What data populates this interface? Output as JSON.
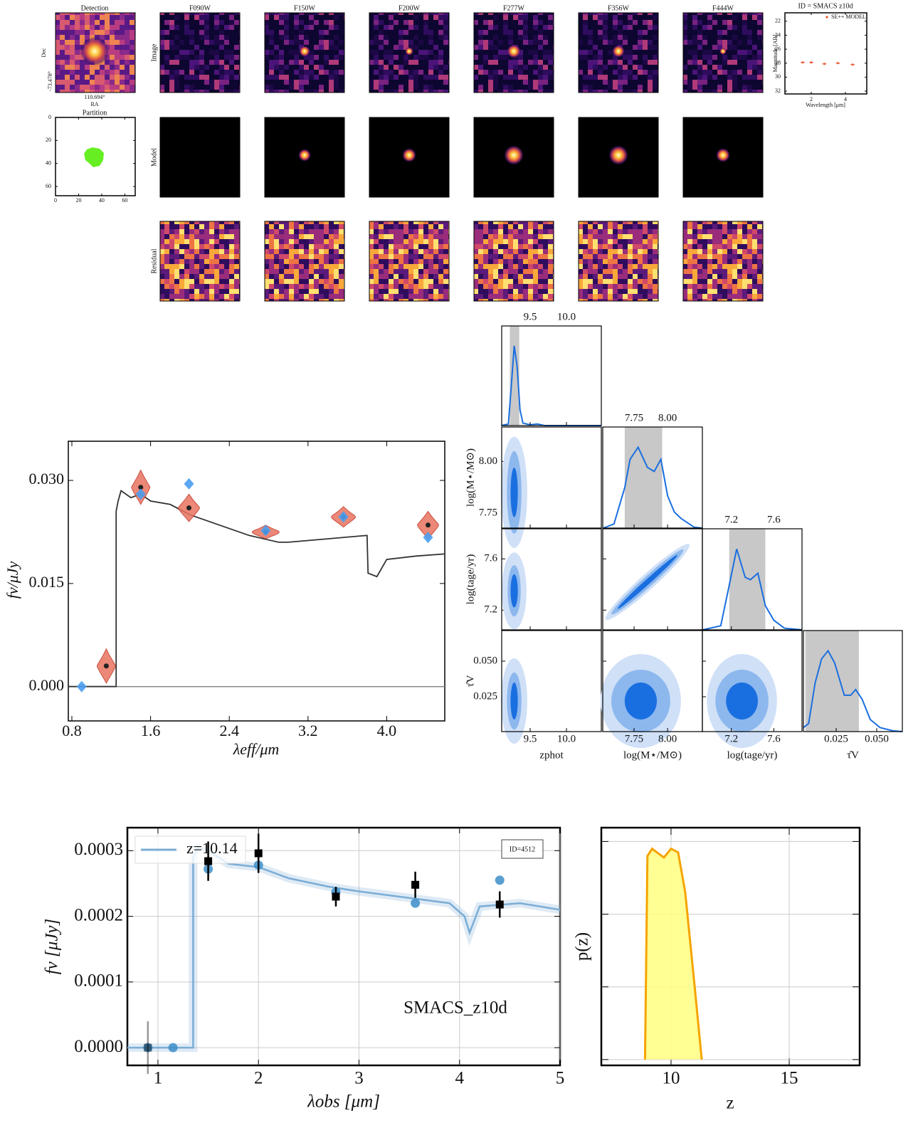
{
  "cutouts": {
    "detection_title": "Detection",
    "ra_label": "RA",
    "dec_label": "Dec",
    "ra_tick": "110.694°",
    "dec_tick": "-73.478°",
    "filters": [
      "F090W",
      "F150W",
      "F200W",
      "F277W",
      "F356W",
      "F444W"
    ],
    "rows": [
      "Image",
      "Model",
      "Residual"
    ]
  },
  "chart_data": [
    {
      "type": "scatter",
      "title": "ID = SMACS z10d",
      "xlabel": "Wavelength [μm]",
      "ylabel": "Magnitude [AB]",
      "xlim": [
        0.46,
        5.25
      ],
      "xticks": [
        2,
        4
      ],
      "ylim": [
        20.8,
        32.4
      ],
      "y_inverted": true,
      "yticks": [
        22,
        24,
        26,
        28,
        30,
        32
      ],
      "series": [
        {
          "name": "SE++ MODEL",
          "color": "#e8552b",
          "x": [
            1.5,
            2.0,
            2.77,
            3.56,
            4.42
          ],
          "values": [
            27.9,
            27.9,
            28.1,
            28.0,
            28.2
          ]
        }
      ]
    },
    {
      "type": "segmentation",
      "title": "Partition",
      "xlim": [
        0,
        69
      ],
      "xticks": [
        0,
        20,
        40,
        60
      ],
      "ylim": [
        0,
        68
      ],
      "y_inverted": true,
      "yticks": [
        0,
        20,
        40,
        60
      ],
      "color": "#66ee22"
    },
    {
      "type": "violin",
      "xlabel": "λeff/μm",
      "ylabel": "fν/μJy",
      "xlim": [
        0.764,
        4.59
      ],
      "xticks": [
        0.8,
        1.6,
        2.4,
        3.2,
        {
          "value": 4,
          "label": "4.0"
        }
      ],
      "ylim": [
        -0.005,
        0.0357
      ],
      "yticks": [
        {
          "value": 0,
          "label": "0.000"
        },
        {
          "value": 0.015,
          "label": "0.015"
        },
        {
          "value": 0.03,
          "label": "0.030"
        }
      ],
      "spectrum": {
        "color": "#333333",
        "x": [
          0.764,
          1.25,
          1.25,
          1.27,
          1.3,
          1.4,
          1.5,
          1.6,
          1.8,
          2.0,
          2.3,
          2.6,
          2.9,
          3.0,
          3.4,
          3.8,
          3.81,
          3.9,
          4.0,
          4.3,
          4.59
        ],
        "y": [
          0,
          0,
          0.0255,
          0.027,
          0.0285,
          0.0275,
          0.028,
          0.027,
          0.0265,
          0.025,
          0.0235,
          0.022,
          0.021,
          0.021,
          0.0215,
          0.022,
          0.0165,
          0.016,
          0.0185,
          0.019,
          0.0193
        ]
      },
      "violins": {
        "color": "#e8735f",
        "x": [
          1.15,
          1.5,
          1.99,
          2.77,
          3.56,
          4.42
        ],
        "y": [
          0.003,
          0.029,
          0.026,
          0.0225,
          0.0247,
          0.0235
        ],
        "err": [
          0.0025,
          0.0025,
          0.002,
          0.001,
          0.0015,
          0.002
        ]
      },
      "photometry": {
        "color": "#4a9df0",
        "x": [
          0.9,
          1.5,
          1.99,
          2.77,
          3.56,
          4.42
        ],
        "y": [
          0,
          0.028,
          0.0295,
          0.0227,
          0.0247,
          0.0217
        ]
      }
    },
    {
      "type": "corner",
      "density_lim": [
        0,
        1.25
      ],
      "colors": [
        "#cfe0f7",
        "#8db8ee",
        "#1a6fe0"
      ],
      "shade": "#c8c8c8",
      "params": [
        {
          "label": "zphot",
          "xlim": [
            9.108,
            10.48
          ],
          "xticks": [
            9.5,
            {
              "value": 10,
              "label": "10.0"
            }
          ],
          "range": [
            9.22,
            9.35
          ],
          "marginal": {
            "x": [
              9.1,
              9.2,
              9.24,
              9.28,
              9.32,
              9.36,
              9.4,
              9.5,
              9.6,
              9.7,
              10.48
            ],
            "density": [
              0,
              0.02,
              0.5,
              1,
              0.75,
              0.2,
              0.03,
              0.01,
              0.02,
              0,
              0
            ]
          }
        },
        {
          "label": "log(M⋆/M⊙)",
          "xlim": [
            7.516,
            8.26
          ],
          "xticks": [
            7.75,
            {
              "value": 8,
              "label": "8.00"
            }
          ],
          "ylim": [
            7.677,
            8.167
          ],
          "yticks": [
            7.75,
            {
              "value": 8,
              "label": "8.00"
            }
          ],
          "range": [
            7.68,
            7.96
          ],
          "marginal": {
            "x": [
              7.52,
              7.6,
              7.68,
              7.72,
              7.78,
              7.85,
              7.9,
              7.95,
              8.0,
              8.05,
              8.1,
              8.2,
              8.26
            ],
            "density": [
              0,
              0.05,
              0.5,
              0.85,
              1,
              0.75,
              0.7,
              0.85,
              0.4,
              0.2,
              0.12,
              0.01,
              0
            ]
          }
        },
        {
          "label": "log(tage/yr)",
          "xlim": [
            6.927,
            7.866
          ],
          "xticks": [
            7.2,
            7.6
          ],
          "ylim": [
            7.046,
            7.835
          ],
          "yticks": [
            7.2,
            7.6
          ],
          "range": [
            7.18,
            7.52
          ],
          "marginal": {
            "x": [
              6.93,
              7.1,
              7.18,
              7.25,
              7.33,
              7.38,
              7.45,
              7.52,
              7.6,
              7.7,
              7.87
            ],
            "density": [
              0,
              0.05,
              0.55,
              1,
              0.65,
              0.62,
              0.7,
              0.3,
              0.12,
              0.02,
              0
            ]
          }
        },
        {
          "label": "τ̂V",
          "xlim": [
            0.0048,
            0.0658
          ],
          "xticks": [
            0.025,
            {
              "value": 0.05,
              "label": "0.050"
            }
          ],
          "ylim": [
            0.0005,
            0.0715
          ],
          "yticks": [
            0.025,
            {
              "value": 0.05,
              "label": "0.050"
            }
          ],
          "range": [
            0.006,
            0.039
          ],
          "marginal": {
            "x": [
              0.0048,
              0.008,
              0.012,
              0.016,
              0.02,
              0.024,
              0.03,
              0.034,
              0.037,
              0.041,
              0.046,
              0.052,
              0.06,
              0.0658
            ],
            "density": [
              0.05,
              0.1,
              0.6,
              0.9,
              1,
              0.85,
              0.45,
              0.45,
              0.52,
              0.4,
              0.15,
              0.05,
              0.01,
              0
            ]
          }
        }
      ],
      "contours": [
        {
          "x_param": 0,
          "y_param": 1,
          "levels": [
            {
              "cx": 9.28,
              "cy": 7.85,
              "rx": 0.18,
              "ry": 0.27
            },
            {
              "cx": 9.28,
              "cy": 7.85,
              "rx": 0.1,
              "ry": 0.2
            },
            {
              "cx": 9.28,
              "cy": 7.85,
              "rx": 0.05,
              "ry": 0.12
            }
          ]
        },
        {
          "x_param": 0,
          "y_param": 2,
          "levels": [
            {
              "cx": 9.28,
              "cy": 7.35,
              "rx": 0.17,
              "ry": 0.3
            },
            {
              "cx": 9.28,
              "cy": 7.35,
              "rx": 0.09,
              "ry": 0.2
            },
            {
              "cx": 9.28,
              "cy": 7.35,
              "rx": 0.05,
              "ry": 0.13
            }
          ]
        },
        {
          "x_param": 0,
          "y_param": 3,
          "levels": [
            {
              "cx": 9.28,
              "cy": 0.022,
              "rx": 0.18,
              "ry": 0.03
            },
            {
              "cx": 9.28,
              "cy": 0.022,
              "rx": 0.1,
              "ry": 0.02
            },
            {
              "cx": 9.28,
              "cy": 0.022,
              "rx": 0.05,
              "ry": 0.013
            }
          ]
        },
        {
          "x_param": 1,
          "y_param": 2,
          "angle": -42,
          "levels": [
            {
              "cx": 7.85,
              "cy": 7.42,
              "rx": 0.42,
              "ry": 0.06
            },
            {
              "cx": 7.85,
              "cy": 7.42,
              "rx": 0.36,
              "ry": 0.04
            },
            {
              "cx": 7.85,
              "cy": 7.42,
              "rx": 0.3,
              "ry": 0.02
            }
          ]
        },
        {
          "x_param": 1,
          "y_param": 3,
          "levels": [
            {
              "cx": 7.8,
              "cy": 0.022,
              "rx": 0.3,
              "ry": 0.033
            },
            {
              "cx": 7.8,
              "cy": 0.022,
              "rx": 0.22,
              "ry": 0.022
            },
            {
              "cx": 7.8,
              "cy": 0.022,
              "rx": 0.12,
              "ry": 0.013
            }
          ]
        },
        {
          "x_param": 2,
          "y_param": 3,
          "levels": [
            {
              "cx": 7.3,
              "cy": 0.022,
              "rx": 0.33,
              "ry": 0.033
            },
            {
              "cx": 7.3,
              "cy": 0.022,
              "rx": 0.25,
              "ry": 0.022
            },
            {
              "cx": 7.3,
              "cy": 0.022,
              "rx": 0.15,
              "ry": 0.013
            }
          ]
        }
      ]
    },
    {
      "type": "line",
      "xlabel": "λobs [μm]",
      "ylabel": "fν [μJy]",
      "annotation": "SMACS_z10d",
      "id_label": "ID=4512",
      "grid": true,
      "xlim": [
        0.696,
        5.0
      ],
      "xticks": [
        1,
        2,
        3,
        4,
        5
      ],
      "ylim": [
        -2.7e-05,
        0.000335
      ],
      "yticks": [
        {
          "value": 0,
          "label": "0.0000"
        },
        {
          "value": 0.0001,
          "label": "0.0001"
        },
        {
          "value": 0.0002,
          "label": "0.0002"
        },
        {
          "value": 0.0003,
          "label": "0.0003"
        }
      ],
      "series": [
        {
          "name": "z=10.14",
          "color": "#7aadd6",
          "x": [
            0.696,
            1.35,
            1.35,
            1.4,
            1.5,
            1.7,
            2.0,
            2.3,
            2.7,
            3.0,
            3.5,
            3.9,
            4.05,
            4.1,
            4.2,
            4.6,
            5.0
          ],
          "values": [
            0,
            0,
            0.00029,
            0.000305,
            0.0003,
            0.00028,
            0.000275,
            0.000258,
            0.000245,
            0.000238,
            0.000228,
            0.00022,
            0.0002,
            0.000175,
            0.000215,
            0.00022,
            0.00021
          ]
        }
      ],
      "model_photometry": {
        "color": "#3d8ec9",
        "x": [
          0.9,
          1.15,
          1.5,
          2.0,
          2.77,
          3.56,
          4.4
        ],
        "values": [
          0,
          0,
          0.000272,
          0.000278,
          0.000237,
          0.00022,
          0.000255
        ]
      },
      "observed": {
        "color": "#000000",
        "x": [
          0.9,
          1.5,
          2.0,
          2.77,
          3.56,
          4.4
        ],
        "values": [
          0,
          0.000284,
          0.000296,
          0.00023,
          0.000248,
          0.000218
        ],
        "err": [
          4e-05,
          3e-05,
          3e-05,
          1.5e-05,
          2e-05,
          2e-05
        ]
      }
    },
    {
      "type": "area",
      "xlabel": "z",
      "ylabel": "p(z)",
      "grid": true,
      "xlim": [
        7.05,
        17.98
      ],
      "xticks": [
        10,
        15
      ],
      "ylim": [
        -0.08,
        3.19
      ],
      "yticks": [
        0,
        1,
        2,
        3
      ],
      "fill": "#ffff80",
      "color": "#f5a300",
      "x": [
        8.9,
        9.0,
        9.2,
        9.4,
        9.7,
        10.0,
        10.3,
        10.6,
        11.0,
        11.3
      ],
      "values": [
        0,
        2.8,
        2.9,
        2.85,
        2.78,
        2.9,
        2.85,
        2.3,
        1.0,
        0
      ]
    }
  ]
}
